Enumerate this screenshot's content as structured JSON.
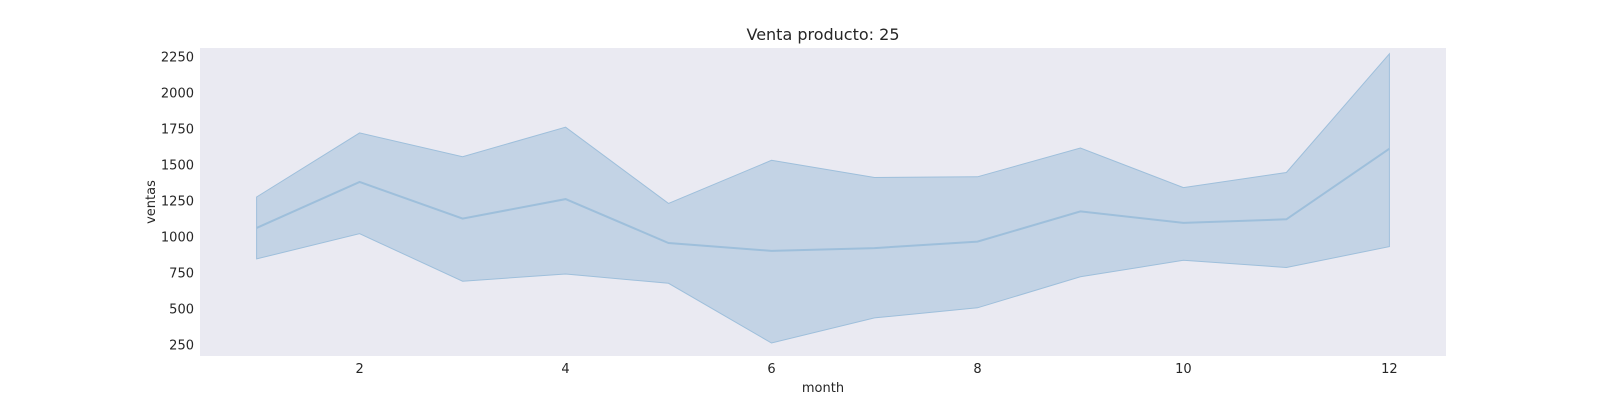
{
  "chart_data": {
    "type": "line",
    "title": "Venta producto: 25",
    "xlabel": "month",
    "ylabel": "ventas",
    "xlim": [
      0.45,
      12.55
    ],
    "ylim": [
      170,
      2310
    ],
    "xticks": [
      2,
      4,
      6,
      8,
      10,
      12
    ],
    "yticks": [
      250,
      500,
      750,
      1000,
      1250,
      1500,
      1750,
      2000,
      2250
    ],
    "grid": false,
    "background": "#eaeaf2",
    "colors": {
      "line": "#9ebfdb",
      "band": "#c3d3e5"
    },
    "series": [
      {
        "x": [
          1,
          2,
          3,
          4,
          5,
          6,
          7,
          8,
          9,
          10,
          11,
          12
        ],
        "y": [
          1060,
          1380,
          1125,
          1260,
          955,
          900,
          920,
          965,
          1175,
          1095,
          1120,
          1610
        ],
        "lower": [
          845,
          1020,
          690,
          740,
          675,
          260,
          435,
          505,
          720,
          835,
          785,
          930
        ],
        "upper": [
          1275,
          1720,
          1555,
          1760,
          1230,
          1530,
          1410,
          1415,
          1615,
          1340,
          1445,
          2270
        ]
      }
    ]
  }
}
